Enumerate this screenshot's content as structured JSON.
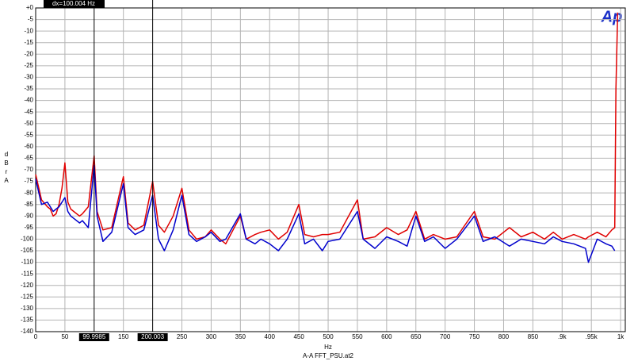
{
  "chart_data": {
    "type": "line",
    "logo": "Ap",
    "y_label": "dBrA",
    "x_label": "Hz",
    "footer": "A-A FFT_PSU.at2",
    "cursor_delta": "dx=100.004 Hz",
    "cursors": [
      99.9985,
      200.003
    ],
    "xlim": [
      0,
      1008
    ],
    "ylim": [
      -140,
      0
    ],
    "grid": true,
    "xticks": [
      0,
      50,
      150,
      250,
      300,
      350,
      400,
      450,
      500,
      550,
      600,
      650,
      700,
      750,
      800,
      850,
      {
        "value": 900,
        "label": ".9k"
      },
      {
        "value": 950,
        "label": ".95k"
      },
      {
        "value": 1000,
        "label": "1k"
      }
    ],
    "yticks": [
      {
        "value": 0,
        "label": "+0"
      },
      -5,
      -10,
      -15,
      -20,
      -25,
      -30,
      -35,
      -40,
      -45,
      -50,
      -55,
      -60,
      -65,
      -70,
      -75,
      -80,
      -85,
      -90,
      -95,
      -100,
      -105,
      -110,
      -115,
      -120,
      -125,
      -130,
      -135,
      -140
    ],
    "x": [
      0,
      10,
      20,
      25,
      30,
      35,
      40,
      45,
      50,
      55,
      60,
      65,
      75,
      80,
      90,
      100,
      105,
      115,
      130,
      150,
      158,
      170,
      185,
      200,
      210,
      220,
      235,
      250,
      262,
      275,
      290,
      300,
      315,
      325,
      350,
      360,
      375,
      385,
      400,
      415,
      430,
      450,
      460,
      475,
      490,
      500,
      520,
      550,
      560,
      580,
      600,
      620,
      635,
      650,
      665,
      680,
      700,
      720,
      750,
      765,
      785,
      810,
      830,
      850,
      870,
      885,
      900,
      920,
      940,
      945,
      960,
      975,
      985,
      990,
      992,
      995
    ],
    "series": [
      {
        "color": "#e00000",
        "values": [
          -72,
          -83,
          -86,
          -87,
          -90,
          -89,
          -85,
          -78,
          -67,
          -84,
          -87,
          -88,
          -90,
          -89,
          -86,
          -64,
          -88,
          -96,
          -95,
          -73,
          -93,
          -96,
          -94,
          -75,
          -94,
          -97,
          -90,
          -78,
          -96,
          -100,
          -99,
          -96,
          -100,
          -102,
          -90,
          -100,
          -98,
          -97,
          -96,
          -100,
          -97,
          -85,
          -98,
          -99,
          -98,
          -98,
          -97,
          -83,
          -100,
          -99,
          -95,
          -98,
          -96,
          -88,
          -100,
          -98,
          -100,
          -99,
          -88,
          -99,
          -100,
          -95,
          -99,
          -97,
          -100,
          -97,
          -100,
          -98,
          -100,
          -99,
          -97,
          -99,
          -96,
          -95,
          -35,
          -2
        ]
      },
      {
        "color": "#0000cc",
        "values": [
          -74,
          -85,
          -84,
          -86,
          -88,
          -87,
          -86,
          -84,
          -82,
          -88,
          -90,
          -91,
          -93,
          -92,
          -95,
          -68,
          -90,
          -101,
          -97,
          -76,
          -95,
          -98,
          -96,
          -81,
          -100,
          -105,
          -96,
          -81,
          -98,
          -101,
          -99,
          -97,
          -101,
          -100,
          -89,
          -100,
          -102,
          -100,
          -102,
          -105,
          -100,
          -89,
          -102,
          -100,
          -105,
          -101,
          -100,
          -88,
          -100,
          -104,
          -99,
          -101,
          -103,
          -90,
          -101,
          -99,
          -104,
          -100,
          -90,
          -101,
          -99,
          -103,
          -100,
          -101,
          -102,
          -99,
          -101,
          -102,
          -104,
          -110,
          -100,
          -102,
          -103,
          -105,
          null,
          null
        ]
      }
    ]
  }
}
